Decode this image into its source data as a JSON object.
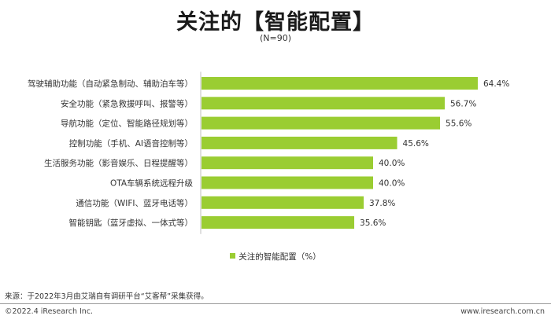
{
  "chart_data": {
    "type": "bar",
    "orientation": "horizontal",
    "title": "关注的【智能配置】",
    "subtitle": "(N=90)",
    "categories": [
      "驾驶辅助功能（自动紧急制动、辅助泊车等）",
      "安全功能（紧急救援呼叫、报警等）",
      "导航功能（定位、智能路径规划等）",
      "控制功能（手机、AI语音控制等）",
      "生活服务功能（影音娱乐、日程提醒等）",
      "OTA车辆系统远程升级",
      "通信功能（WIFI、蓝牙电话等）",
      "智能钥匙（蓝牙虚拟、一体式等）"
    ],
    "series": [
      {
        "name": "关注的智能配置（%）",
        "values": [
          64.4,
          56.7,
          55.6,
          45.6,
          40.0,
          40.0,
          37.8,
          35.6
        ],
        "labels": [
          "64.4%",
          "56.7%",
          "55.6%",
          "45.6%",
          "40.0%",
          "40.0%",
          "37.8%",
          "35.6%"
        ]
      }
    ],
    "xlim": [
      0,
      70
    ],
    "grid": false,
    "legend_position": "bottom",
    "bar_color": "#9acd32"
  },
  "source_note": "来源：于2022年3月由艾瑞自有调研平台“艾客帮”采集获得。",
  "copyright": "©2022.4 iResearch Inc.",
  "website": "www.iresearch.com.cn"
}
